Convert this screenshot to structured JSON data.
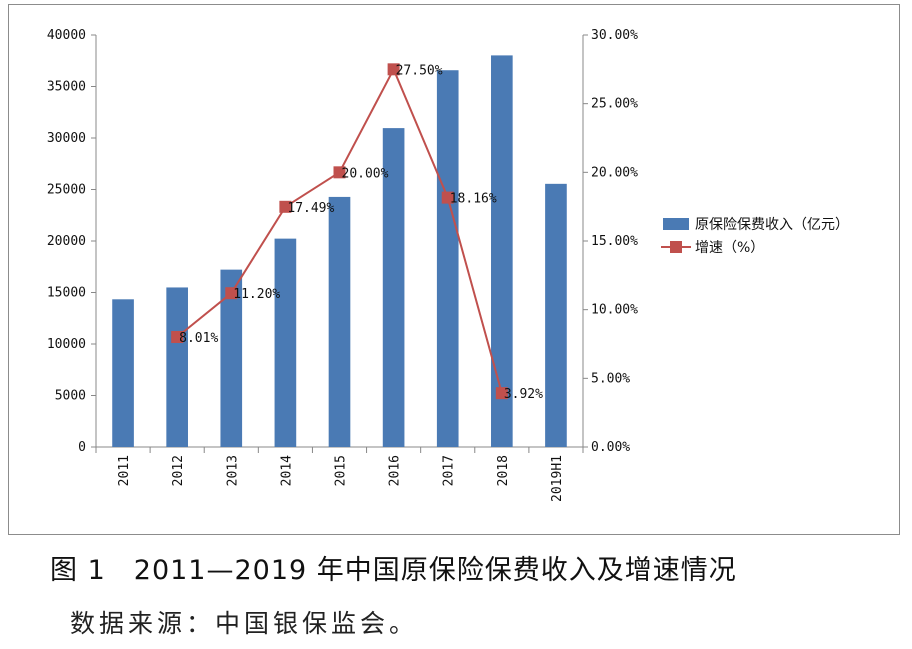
{
  "caption": "图 1　2011—2019 年中国原保险保费收入及增速情况",
  "source": "数据来源：中国银保监会。",
  "colors": {
    "bar": "#4a7ab4",
    "line": "#c0504d",
    "axis": "#888888"
  },
  "chart_data": {
    "type": "bar",
    "categories": [
      "2011",
      "2012",
      "2013",
      "2014",
      "2015",
      "2016",
      "2017",
      "2018",
      "2019H1"
    ],
    "left_axis": {
      "ylim": [
        0,
        40000
      ],
      "ticks": [
        "0",
        "5000",
        "10000",
        "15000",
        "20000",
        "25000",
        "30000",
        "35000",
        "40000"
      ]
    },
    "right_axis": {
      "ylim": [
        0,
        30
      ],
      "ticks": [
        "0.00%",
        "5.00%",
        "10.00%",
        "15.00%",
        "20.00%",
        "25.00%",
        "30.00%"
      ]
    },
    "series": [
      {
        "name": "原保险保费收入（亿元）",
        "type": "bar",
        "axis": "left",
        "values": [
          14340,
          15490,
          17220,
          20230,
          24280,
          30960,
          36580,
          38020,
          25550
        ]
      },
      {
        "name": "增速（%）",
        "type": "line",
        "axis": "right",
        "values": [
          null,
          8.01,
          11.2,
          17.49,
          20.0,
          27.5,
          18.16,
          3.92,
          null
        ],
        "labels": [
          "",
          "8.01%",
          "11.20%",
          "17.49%",
          "20.00%",
          "27.50%",
          "18.16%",
          "3.92%",
          ""
        ]
      }
    ],
    "grid": false,
    "legend_position": "right"
  }
}
